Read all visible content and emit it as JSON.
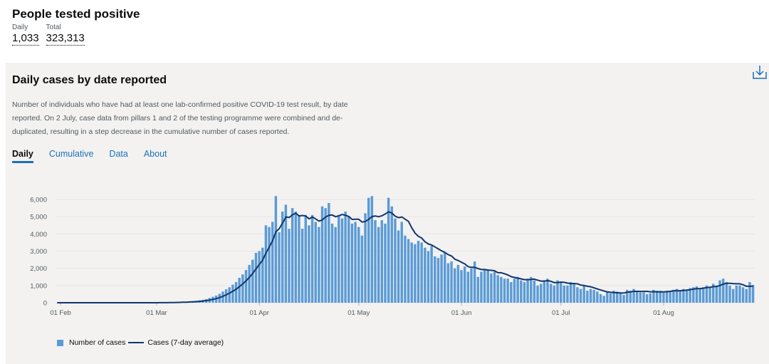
{
  "summary": {
    "title": "People tested positive",
    "daily_label": "Daily",
    "daily_value": "1,033",
    "total_label": "Total",
    "total_value": "323,313"
  },
  "card": {
    "title": "Daily cases by date reported",
    "description": "Number of individuals who have had at least one lab-confirmed positive COVID-19 test result, by date reported. On 2 July, case data from pillars 1 and 2 of the testing programme were combined and de-duplicated, resulting in a step decrease in the cumulative number of cases reported.",
    "download_icon": "download-icon",
    "tabs": [
      {
        "label": "Daily",
        "active": true
      },
      {
        "label": "Cumulative",
        "active": false
      },
      {
        "label": "Data",
        "active": false
      },
      {
        "label": "About",
        "active": false
      }
    ]
  },
  "colors": {
    "bars": "#5b9bd5",
    "line": "#12356b",
    "accent": "#1d70b8"
  },
  "chart_data": {
    "type": "bar",
    "series": [
      {
        "name": "Number of cases",
        "type": "bar"
      },
      {
        "name": "Cases (7-day average)",
        "type": "line"
      }
    ],
    "x_ticks": [
      "01 Feb",
      "01 Mar",
      "01 Apr",
      "01 May",
      "01 Jun",
      "01 Jul",
      "01 Aug"
    ],
    "y_ticks": [
      "0",
      "1,000",
      "2,000",
      "3,000",
      "4,000",
      "5,000",
      "6,000"
    ],
    "ylim": [
      0,
      6500
    ],
    "grid": true,
    "legend": "bottom-left",
    "start_date": "2020-01-31",
    "daily_cases": [
      0,
      0,
      0,
      0,
      0,
      0,
      0,
      0,
      0,
      0,
      0,
      0,
      0,
      0,
      0,
      0,
      0,
      0,
      0,
      0,
      0,
      0,
      0,
      0,
      0,
      0,
      0,
      0,
      0,
      0,
      5,
      10,
      12,
      15,
      20,
      25,
      35,
      40,
      50,
      60,
      75,
      90,
      110,
      140,
      170,
      210,
      280,
      350,
      420,
      520,
      650,
      780,
      900,
      1050,
      1200,
      1450,
      1650,
      1900,
      2200,
      2500,
      2900,
      3000,
      3200,
      4500,
      4400,
      4700,
      6200,
      4100,
      5300,
      5700,
      4300,
      5500,
      5300,
      5100,
      4300,
      5100,
      4500,
      5100,
      4700,
      4400,
      5600,
      5500,
      5800,
      4600,
      4400,
      5100,
      4900,
      5300,
      5000,
      4600,
      4700,
      4400,
      3900,
      5200,
      6100,
      6200,
      4800,
      4400,
      4800,
      4600,
      6100,
      5600,
      4900,
      4200,
      4700,
      3900,
      3700,
      3500,
      3400,
      3600,
      3500,
      3200,
      3000,
      3300,
      2700,
      2600,
      2800,
      2900,
      2300,
      2400,
      2000,
      2200,
      1900,
      2100,
      1800,
      2000,
      2400,
      1500,
      1800,
      1900,
      1900,
      1700,
      1800,
      1600,
      1500,
      1400,
      1400,
      1200,
      1400,
      1500,
      1300,
      1200,
      1400,
      1500,
      1300,
      1000,
      1100,
      1300,
      1400,
      1100,
      1000,
      1300,
      1200,
      1000,
      1000,
      1200,
      1100,
      900,
      800,
      1000,
      700,
      800,
      750,
      650,
      500,
      400,
      600,
      550,
      700,
      650,
      600,
      450,
      750,
      700,
      800,
      700,
      600,
      600,
      500,
      550,
      750,
      700,
      700,
      600,
      700,
      650,
      750,
      800,
      700,
      800,
      750,
      850,
      900,
      950,
      800,
      900,
      1000,
      900,
      1100,
      1000,
      1300,
      1400,
      1200,
      1000,
      800,
      1000,
      1000,
      900,
      800,
      1200,
      1033
    ]
  }
}
